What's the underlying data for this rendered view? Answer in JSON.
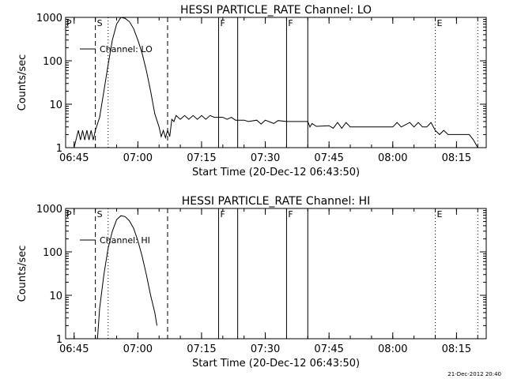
{
  "footer": {
    "timestamp": "21-Dec-2012 20:40"
  },
  "chart_data": [
    {
      "type": "line",
      "title": "HESSI PARTICLE_RATE Channel: LO",
      "xlabel": "Start Time (20-Dec-12 06:43:50)",
      "ylabel": "Counts/sec",
      "yscale": "log",
      "ylim": [
        1,
        1000
      ],
      "xlim_minutes_from_0643": [
        0,
        99
      ],
      "x_tick_labels": [
        "06:45",
        "07:00",
        "07:15",
        "07:30",
        "07:45",
        "08:00",
        "08:15"
      ],
      "y_tick_labels": [
        "1",
        "10",
        "100",
        "1000"
      ],
      "legend": {
        "label": "Channel: LO",
        "placement": "top-left"
      },
      "markers": [
        {
          "time": "06:50",
          "style": "dashed",
          "label": "S"
        },
        {
          "time": "06:53",
          "style": "dotted",
          "label": ""
        },
        {
          "time": "07:07",
          "style": "dashed",
          "label": ""
        },
        {
          "time": "07:19",
          "style": "solid",
          "label": "F"
        },
        {
          "time": "07:23.5",
          "style": "solid",
          "label": ""
        },
        {
          "time": "07:35",
          "style": "solid",
          "label": "F"
        },
        {
          "time": "07:40",
          "style": "solid",
          "label": ""
        },
        {
          "time": "08:10",
          "style": "dotted",
          "label": "E"
        },
        {
          "time": "08:20",
          "style": "dotted",
          "label": ""
        }
      ],
      "corner_labels": [
        "P"
      ],
      "series": [
        {
          "name": "Channel: LO",
          "points": [
            [
              "06:45",
              1.0
            ],
            [
              "06:46",
              2.5
            ],
            [
              "06:46.5",
              1.5
            ],
            [
              "06:47",
              2.5
            ],
            [
              "06:47.5",
              1.5
            ],
            [
              "06:48",
              2.5
            ],
            [
              "06:48.5",
              1.5
            ],
            [
              "06:49",
              2.5
            ],
            [
              "06:49.5",
              1.5
            ],
            [
              "06:50",
              2.5
            ],
            [
              "06:51",
              5
            ],
            [
              "06:52",
              20
            ],
            [
              "06:53",
              80
            ],
            [
              "06:54",
              300
            ],
            [
              "06:55",
              700
            ],
            [
              "06:56",
              1000
            ],
            [
              "06:57",
              950
            ],
            [
              "06:58",
              800
            ],
            [
              "06:59",
              550
            ],
            [
              "07:00",
              300
            ],
            [
              "07:01",
              150
            ],
            [
              "07:02",
              60
            ],
            [
              "07:03",
              20
            ],
            [
              "07:04",
              6
            ],
            [
              "07:05",
              3
            ],
            [
              "07:05.5",
              1.8
            ],
            [
              "07:06",
              2.5
            ],
            [
              "07:06.5",
              1.7
            ],
            [
              "07:07",
              2.5
            ],
            [
              "07:07.5",
              1.8
            ],
            [
              "07:08",
              4.5
            ],
            [
              "07:08.5",
              4
            ],
            [
              "07:09",
              5.5
            ],
            [
              "07:10",
              4.5
            ],
            [
              "07:11",
              5.5
            ],
            [
              "07:12",
              4.5
            ],
            [
              "07:13",
              5.5
            ],
            [
              "07:14",
              4.5
            ],
            [
              "07:15",
              5.5
            ],
            [
              "07:16",
              4.5
            ],
            [
              "07:17",
              5.5
            ],
            [
              "07:18",
              5
            ],
            [
              "07:20",
              5
            ],
            [
              "07:21",
              4.5
            ],
            [
              "07:22",
              5
            ],
            [
              "07:23",
              4.3
            ],
            [
              "07:25",
              4.3
            ],
            [
              "07:26",
              4
            ],
            [
              "07:28",
              4.3
            ],
            [
              "07:29",
              3.5
            ],
            [
              "07:30",
              4.3
            ],
            [
              "07:32",
              3.6
            ],
            [
              "07:33",
              4.2
            ],
            [
              "07:35",
              4
            ],
            [
              "07:40",
              4
            ],
            [
              "07:40.5",
              3
            ],
            [
              "07:41",
              3.6
            ],
            [
              "07:42",
              3.1
            ],
            [
              "07:45",
              3.2
            ],
            [
              "07:46",
              2.8
            ],
            [
              "07:47",
              3.8
            ],
            [
              "07:48",
              2.8
            ],
            [
              "07:49",
              3.8
            ],
            [
              "07:50",
              3
            ],
            [
              "08:00",
              3
            ],
            [
              "08:01",
              3.8
            ],
            [
              "08:02",
              3
            ],
            [
              "08:04",
              3.8
            ],
            [
              "08:05",
              3
            ],
            [
              "08:06",
              3.8
            ],
            [
              "08:07",
              3
            ],
            [
              "08:08",
              3
            ],
            [
              "08:09",
              3.8
            ],
            [
              "08:10",
              2.5
            ],
            [
              "08:11",
              2
            ],
            [
              "08:12",
              2.5
            ],
            [
              "08:13",
              2
            ],
            [
              "08:14",
              2
            ],
            [
              "08:15",
              2
            ],
            [
              "08:18",
              2
            ],
            [
              "08:19",
              1.5
            ],
            [
              "08:20",
              1.0
            ]
          ]
        }
      ]
    },
    {
      "type": "line",
      "title": "HESSI PARTICLE_RATE Channel: HI",
      "xlabel": "Start Time (20-Dec-12 06:43:50)",
      "ylabel": "Counts/sec",
      "yscale": "log",
      "ylim": [
        1,
        1000
      ],
      "xlim_minutes_from_0643": [
        0,
        99
      ],
      "x_tick_labels": [
        "06:45",
        "07:00",
        "07:15",
        "07:30",
        "07:45",
        "08:00",
        "08:15"
      ],
      "y_tick_labels": [
        "1",
        "10",
        "100",
        "1000"
      ],
      "legend": {
        "label": "Channel: HI",
        "placement": "top-left"
      },
      "markers": [
        {
          "time": "06:50",
          "style": "dashed",
          "label": "S"
        },
        {
          "time": "06:53",
          "style": "dotted",
          "label": ""
        },
        {
          "time": "07:07",
          "style": "dashed",
          "label": ""
        },
        {
          "time": "07:19",
          "style": "solid",
          "label": "F"
        },
        {
          "time": "07:23.5",
          "style": "solid",
          "label": ""
        },
        {
          "time": "07:35",
          "style": "solid",
          "label": "F"
        },
        {
          "time": "07:40",
          "style": "solid",
          "label": ""
        },
        {
          "time": "08:10",
          "style": "dotted",
          "label": "E"
        },
        {
          "time": "08:20",
          "style": "dotted",
          "label": ""
        }
      ],
      "corner_labels": [
        "P"
      ],
      "series": [
        {
          "name": "Channel: HI",
          "points": [
            [
              "06:50.5",
              1.0
            ],
            [
              "06:51",
              5
            ],
            [
              "06:52",
              30
            ],
            [
              "06:53",
              120
            ],
            [
              "06:54",
              300
            ],
            [
              "06:55",
              550
            ],
            [
              "06:56",
              680
            ],
            [
              "06:57",
              650
            ],
            [
              "06:58",
              520
            ],
            [
              "06:59",
              350
            ],
            [
              "07:00",
              180
            ],
            [
              "07:01",
              80
            ],
            [
              "07:02",
              30
            ],
            [
              "07:03",
              10
            ],
            [
              "07:04",
              4
            ],
            [
              "07:04.5",
              2
            ]
          ]
        }
      ]
    }
  ]
}
